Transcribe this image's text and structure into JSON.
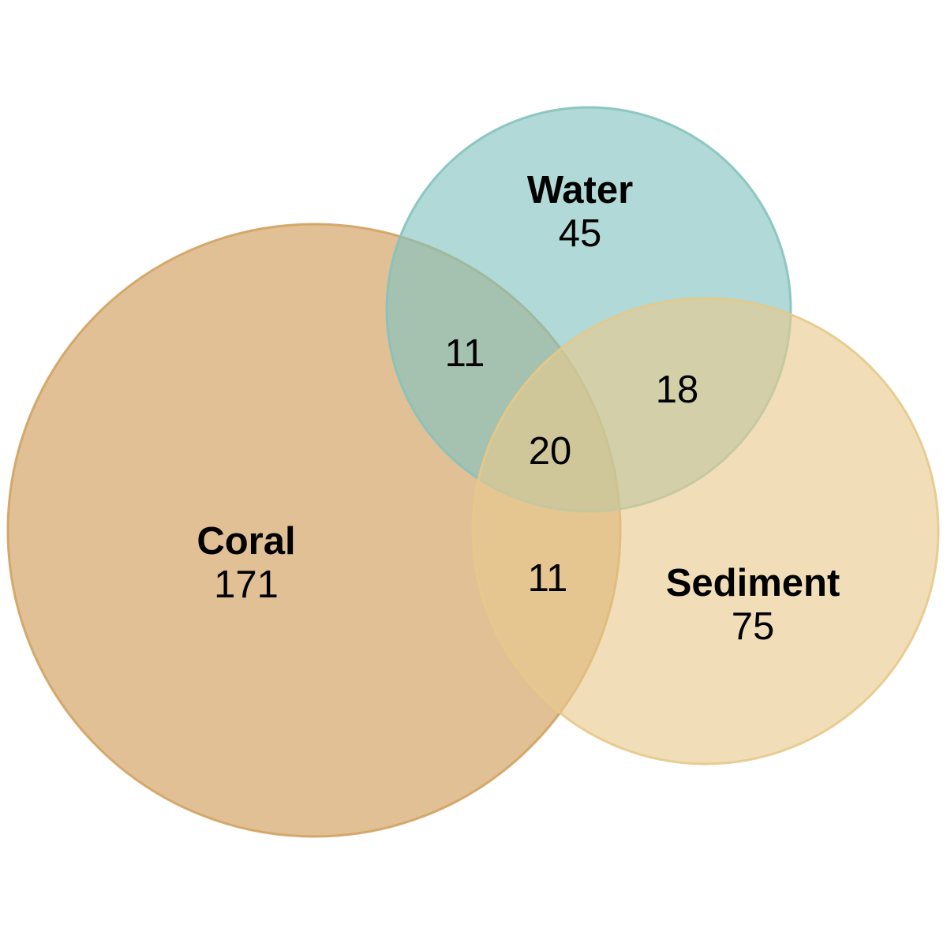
{
  "sets": {
    "coral": {
      "label": "Coral",
      "count": "171",
      "color": "#D4A56A"
    },
    "water": {
      "label": "Water",
      "count": "45",
      "color": "#80C2BF"
    },
    "sediment": {
      "label": "Sediment",
      "count": "75",
      "color": "#E8C98C"
    }
  },
  "intersections": {
    "coral_water": "11",
    "water_sediment": "18",
    "coral_water_sediment": "20",
    "coral_sediment": "11"
  },
  "outline_colors": {
    "coral": "#D2A260",
    "water": "#86C2BD",
    "sediment": "#E6C989"
  }
}
